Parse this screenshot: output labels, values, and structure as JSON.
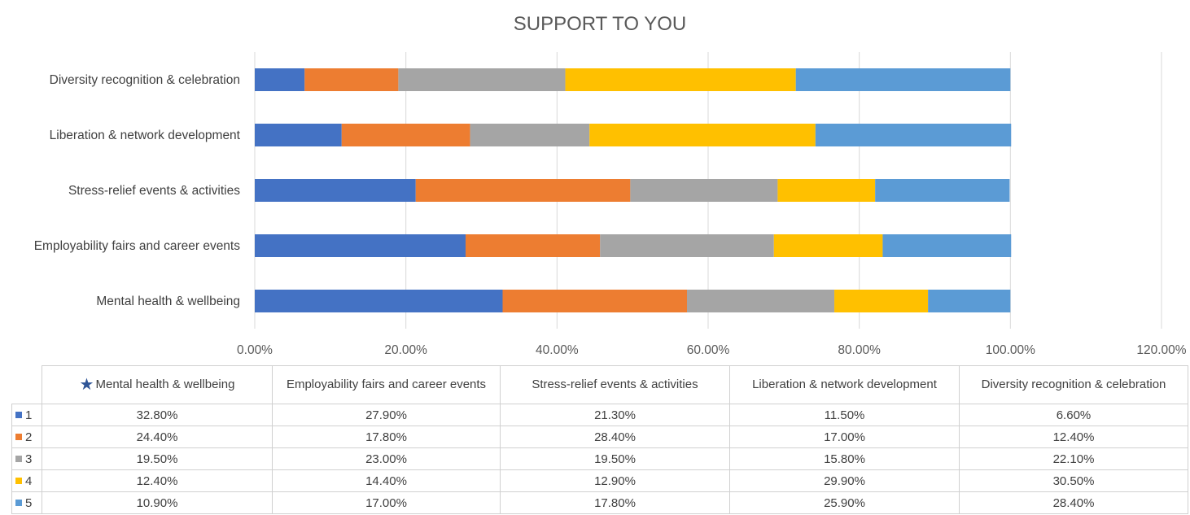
{
  "chart_data": {
    "type": "bar",
    "orientation": "horizontal",
    "stacked": true,
    "title": "SUPPORT TO YOU",
    "categories": [
      "Mental health & wellbeing",
      "Employability fairs and career events",
      "Stress-relief events & activities",
      "Liberation & network development",
      "Diversity recognition & celebration"
    ],
    "series": [
      {
        "name": "1",
        "color": "#4472c4",
        "values": [
          32.8,
          27.9,
          21.3,
          11.5,
          6.6
        ],
        "labels": [
          "32.80%",
          "27.90%",
          "21.30%",
          "11.50%",
          "6.60%"
        ]
      },
      {
        "name": "2",
        "color": "#ed7d31",
        "values": [
          24.4,
          17.8,
          28.4,
          17.0,
          12.4
        ],
        "labels": [
          "24.40%",
          "17.80%",
          "28.40%",
          "17.00%",
          "12.40%"
        ]
      },
      {
        "name": "3",
        "color": "#a5a5a5",
        "values": [
          19.5,
          23.0,
          19.5,
          15.8,
          22.1
        ],
        "labels": [
          "19.50%",
          "23.00%",
          "19.50%",
          "15.80%",
          "22.10%"
        ]
      },
      {
        "name": "4",
        "color": "#ffc000",
        "values": [
          12.4,
          14.4,
          12.9,
          29.9,
          30.5
        ],
        "labels": [
          "12.40%",
          "14.40%",
          "12.90%",
          "29.90%",
          "30.50%"
        ]
      },
      {
        "name": "5",
        "color": "#5b9bd5",
        "values": [
          10.9,
          17.0,
          17.8,
          25.9,
          28.4
        ],
        "labels": [
          "10.90%",
          "17.00%",
          "17.80%",
          "25.90%",
          "28.40%"
        ]
      }
    ],
    "xlim": [
      0,
      120
    ],
    "xticks": [
      "0.00%",
      "20.00%",
      "40.00%",
      "60.00%",
      "80.00%",
      "100.00%",
      "120.00%"
    ],
    "grid": true,
    "data_table": true,
    "table_headers": [
      "Mental health & wellbeing",
      "Employability fairs and career events",
      "Stress-relief events & activities",
      "Liberation & network development",
      "Diversity recognition & celebration"
    ],
    "header_icon": "star-icon"
  }
}
